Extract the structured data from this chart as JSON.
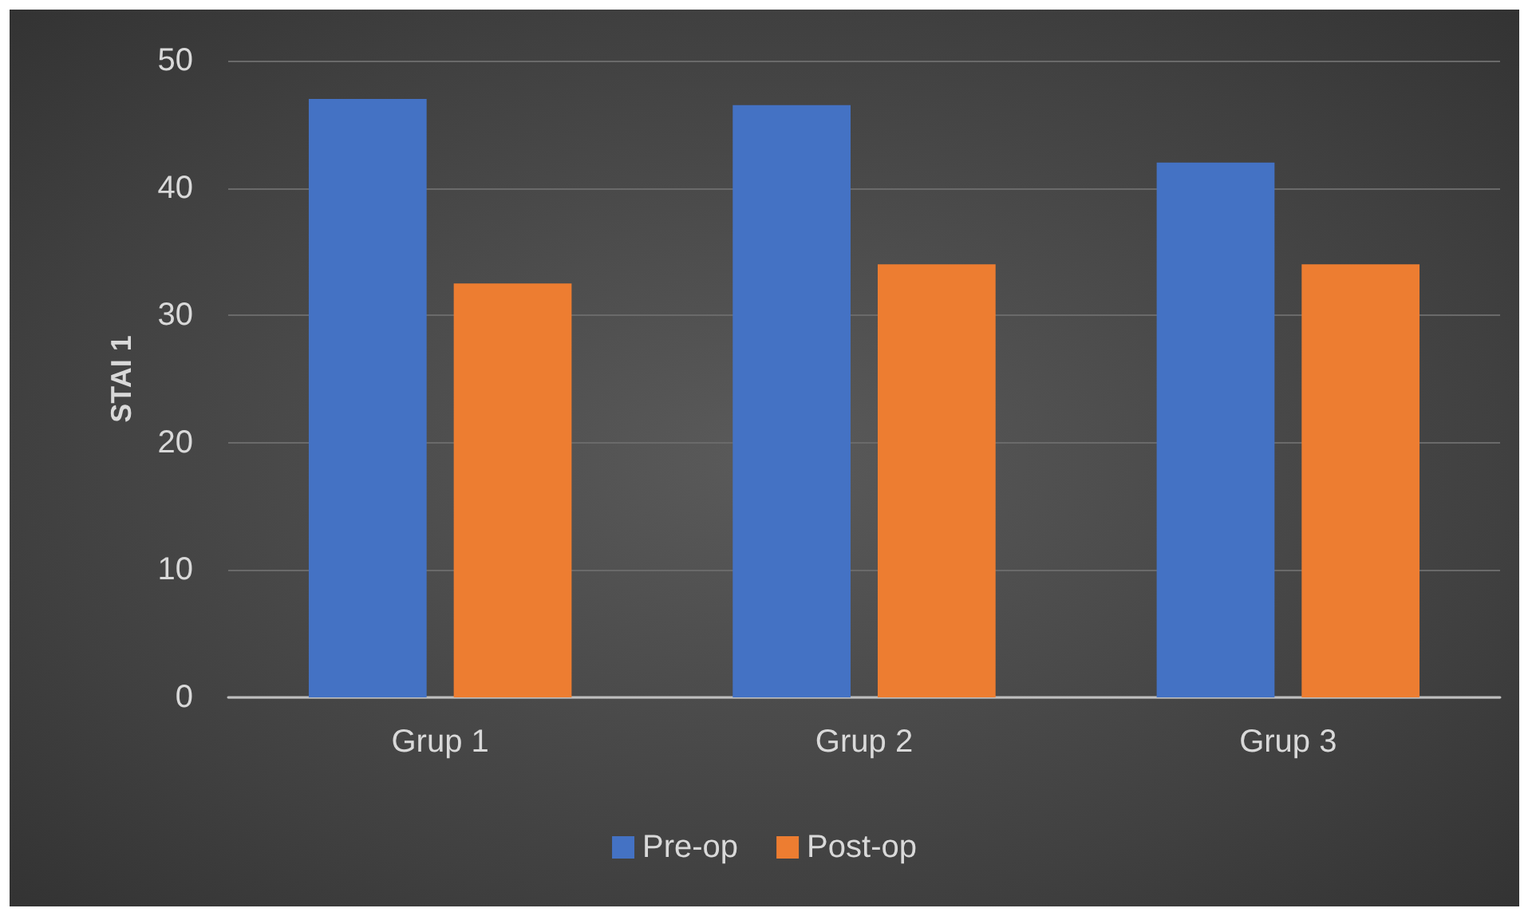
{
  "chart_data": {
    "type": "bar",
    "ylabel": "STAI 1",
    "categories": [
      "Grup 1",
      "Grup 2",
      "Grup 3"
    ],
    "series": [
      {
        "name": "Pre-op",
        "color": "#4472c4",
        "values": [
          47,
          46.5,
          42
        ]
      },
      {
        "name": "Post-op",
        "color": "#ed7d31",
        "values": [
          32.5,
          34,
          34
        ]
      }
    ],
    "ylim": [
      0,
      50
    ],
    "yticks": [
      0,
      10,
      20,
      30,
      40,
      50
    ],
    "grid": "y",
    "legend": "bottom"
  }
}
